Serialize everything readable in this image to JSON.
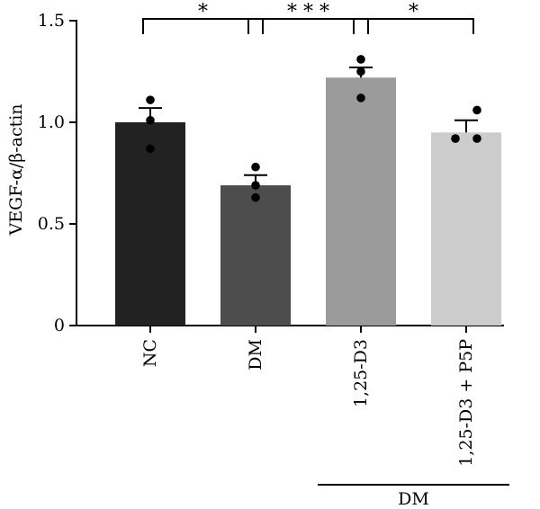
{
  "chart_data": {
    "type": "bar",
    "ylabel": "VEGF-α/β-actin",
    "xlabel": "",
    "ylim": [
      0,
      1.5
    ],
    "yticks": [
      {
        "value": 0,
        "label": "0"
      },
      {
        "value": 0.5,
        "label": "0.5"
      },
      {
        "value": 1.0,
        "label": "1.0"
      },
      {
        "value": 1.5,
        "label": "1.5"
      }
    ],
    "categories": [
      "NC",
      "DM",
      "1,25-D3",
      "1,25-D3 + P5P"
    ],
    "values": [
      1.0,
      0.69,
      1.22,
      0.95
    ],
    "errors": [
      0.07,
      0.05,
      0.05,
      0.06
    ],
    "bar_colors": [
      "#222222",
      "#4d4d4d",
      "#9b9b9b",
      "#cccccc"
    ],
    "points": [
      [
        1.11,
        1.01,
        0.87
      ],
      [
        0.78,
        0.69,
        0.63
      ],
      [
        1.31,
        1.25,
        1.12
      ],
      [
        1.06,
        0.92,
        0.92
      ]
    ],
    "significance": [
      {
        "from": 0,
        "to": 1,
        "label": "*"
      },
      {
        "from": 1,
        "to": 2,
        "label": "* * *"
      },
      {
        "from": 2,
        "to": 3,
        "label": "*"
      }
    ],
    "group_bracket": {
      "from": 2,
      "to": 3,
      "label": "DM"
    },
    "grid": false,
    "legend": "none"
  }
}
